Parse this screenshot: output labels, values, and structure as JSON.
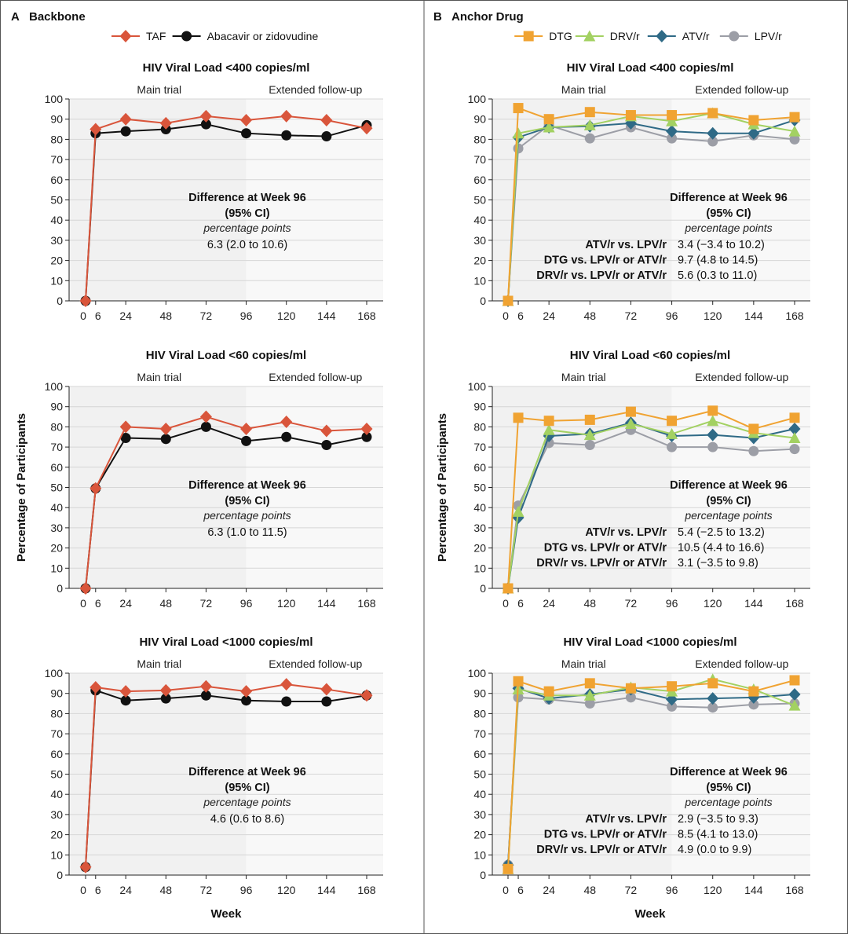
{
  "panels": [
    {
      "letter": "A",
      "title": "Backbone",
      "xlabel": "Week",
      "ylabel": "Percentage of Participants",
      "legend": [
        {
          "name": "TAF",
          "color": "#d9553b",
          "marker": "diamond"
        },
        {
          "name": "Abacavir or zidovudine",
          "color": "#111111",
          "marker": "circle"
        }
      ]
    },
    {
      "letter": "B",
      "title": "Anchor Drug",
      "xlabel": "Week",
      "ylabel": "Percentage of Participants",
      "legend": [
        {
          "name": "DTG",
          "color": "#f0a332",
          "marker": "square"
        },
        {
          "name": "DRV/r",
          "color": "#a3d162",
          "marker": "triangle"
        },
        {
          "name": "ATV/r",
          "color": "#2f6a86",
          "marker": "diamond"
        },
        {
          "name": "LPV/r",
          "color": "#9c9ea6",
          "marker": "circle"
        }
      ]
    }
  ],
  "chart_data": [
    {
      "panel": "A",
      "type": "line",
      "title": "HIV Viral Load <400 copies/ml",
      "x": [
        0,
        6,
        24,
        48,
        72,
        96,
        120,
        144,
        168
      ],
      "x_ticks": [
        0,
        6,
        24,
        48,
        72,
        96,
        120,
        144,
        168
      ],
      "y_ticks": [
        0,
        10,
        20,
        30,
        40,
        50,
        60,
        70,
        80,
        90,
        100
      ],
      "ylim": [
        0,
        100
      ],
      "grid": true,
      "sections": [
        "Main trial",
        "Extended follow-up"
      ],
      "annotation": {
        "heading": "Difference at Week 96",
        "subheading": "(95% CI)",
        "units": "percentage points",
        "rows": [
          {
            "label": "",
            "value": "6.3 (2.0 to 10.6)"
          }
        ]
      },
      "series": [
        {
          "name": "TAF",
          "values": [
            0,
            85,
            90,
            88,
            91.5,
            89.5,
            91.5,
            89.5,
            85.5
          ]
        },
        {
          "name": "Abacavir or zidovudine",
          "values": [
            0,
            83,
            84,
            85,
            87.5,
            83,
            82,
            81.5,
            87
          ]
        }
      ]
    },
    {
      "panel": "A",
      "type": "line",
      "title": "HIV Viral Load <60 copies/ml",
      "x": [
        0,
        6,
        24,
        48,
        72,
        96,
        120,
        144,
        168
      ],
      "x_ticks": [
        0,
        6,
        24,
        48,
        72,
        96,
        120,
        144,
        168
      ],
      "y_ticks": [
        0,
        10,
        20,
        30,
        40,
        50,
        60,
        70,
        80,
        90,
        100
      ],
      "ylim": [
        0,
        100
      ],
      "grid": true,
      "sections": [
        "Main trial",
        "Extended follow-up"
      ],
      "annotation": {
        "heading": "Difference at Week 96",
        "subheading": "(95% CI)",
        "units": "percentage points",
        "rows": [
          {
            "label": "",
            "value": "6.3 (1.0 to 11.5)"
          }
        ]
      },
      "series": [
        {
          "name": "TAF",
          "values": [
            0,
            49.5,
            80,
            79,
            85,
            79,
            82.5,
            78,
            79
          ]
        },
        {
          "name": "Abacavir or zidovudine",
          "values": [
            0,
            49.5,
            74.5,
            74,
            80,
            73,
            75,
            71,
            75
          ]
        }
      ]
    },
    {
      "panel": "A",
      "type": "line",
      "title": "HIV Viral Load <1000 copies/ml",
      "x": [
        0,
        6,
        24,
        48,
        72,
        96,
        120,
        144,
        168
      ],
      "x_ticks": [
        0,
        6,
        24,
        48,
        72,
        96,
        120,
        144,
        168
      ],
      "y_ticks": [
        0,
        10,
        20,
        30,
        40,
        50,
        60,
        70,
        80,
        90,
        100
      ],
      "ylim": [
        0,
        100
      ],
      "grid": true,
      "sections": [
        "Main trial",
        "Extended follow-up"
      ],
      "annotation": {
        "heading": "Difference at Week 96",
        "subheading": "(95% CI)",
        "units": "percentage points",
        "rows": [
          {
            "label": "",
            "value": "4.6 (0.6 to 8.6)"
          }
        ]
      },
      "series": [
        {
          "name": "TAF",
          "values": [
            4,
            93,
            91,
            91.5,
            93.5,
            91,
            94.5,
            92,
            89
          ]
        },
        {
          "name": "Abacavir or zidovudine",
          "values": [
            4,
            91.5,
            86.5,
            87.5,
            89,
            86.5,
            86,
            86,
            89
          ]
        }
      ]
    },
    {
      "panel": "B",
      "type": "line",
      "title": "HIV Viral Load <400 copies/ml",
      "x": [
        0,
        6,
        24,
        48,
        72,
        96,
        120,
        144,
        168
      ],
      "x_ticks": [
        0,
        6,
        24,
        48,
        72,
        96,
        120,
        144,
        168
      ],
      "y_ticks": [
        0,
        10,
        20,
        30,
        40,
        50,
        60,
        70,
        80,
        90,
        100
      ],
      "ylim": [
        0,
        100
      ],
      "grid": true,
      "sections": [
        "Main trial",
        "Extended follow-up"
      ],
      "annotation": {
        "heading": "Difference at Week 96",
        "subheading": "(95% CI)",
        "units": "percentage points",
        "rows": [
          {
            "label": "ATV/r vs. LPV/r",
            "value": "3.4 (−3.4 to 10.2)"
          },
          {
            "label": "DTG vs. LPV/r or ATV/r",
            "value": "9.7 (4.8 to 14.5)"
          },
          {
            "label": "DRV/r vs. LPV/r or ATV/r",
            "value": "5.6 (0.3 to 11.0)"
          }
        ]
      },
      "series": [
        {
          "name": "DTG",
          "values": [
            0,
            95.5,
            90,
            93.5,
            92,
            92,
            93,
            89.5,
            91
          ]
        },
        {
          "name": "DRV/r",
          "values": [
            0,
            83,
            86,
            87,
            91.5,
            89,
            93,
            87.5,
            84
          ]
        },
        {
          "name": "ATV/r",
          "values": [
            0,
            81,
            86,
            86.5,
            88,
            84,
            83,
            83,
            89.5
          ]
        },
        {
          "name": "LPV/r",
          "values": [
            0,
            75.5,
            87,
            80.5,
            86,
            80.5,
            79,
            82,
            80
          ]
        }
      ]
    },
    {
      "panel": "B",
      "type": "line",
      "title": "HIV Viral Load <60 copies/ml",
      "x": [
        0,
        6,
        24,
        48,
        72,
        96,
        120,
        144,
        168
      ],
      "x_ticks": [
        0,
        6,
        24,
        48,
        72,
        96,
        120,
        144,
        168
      ],
      "y_ticks": [
        0,
        10,
        20,
        30,
        40,
        50,
        60,
        70,
        80,
        90,
        100
      ],
      "ylim": [
        0,
        100
      ],
      "grid": true,
      "sections": [
        "Main trial",
        "Extended follow-up"
      ],
      "annotation": {
        "heading": "Difference at Week 96",
        "subheading": "(95% CI)",
        "units": "percentage points",
        "rows": [
          {
            "label": "ATV/r vs. LPV/r",
            "value": "5.4 (−2.5 to 13.2)"
          },
          {
            "label": "DTG vs. LPV/r or ATV/r",
            "value": "10.5 (4.4 to 16.6)"
          },
          {
            "label": "DRV/r vs. LPV/r or ATV/r",
            "value": "3.1 (−3.5 to 9.8)"
          }
        ]
      },
      "series": [
        {
          "name": "DTG",
          "values": [
            0,
            84.5,
            83,
            83.5,
            87.5,
            83,
            88,
            79,
            84.5
          ]
        },
        {
          "name": "DRV/r",
          "values": [
            0,
            38,
            78.5,
            76,
            81.5,
            76.5,
            83,
            77,
            74.5
          ]
        },
        {
          "name": "ATV/r",
          "values": [
            0,
            35,
            75.5,
            76.5,
            82,
            75.5,
            76,
            74.5,
            79
          ]
        },
        {
          "name": "LPV/r",
          "values": [
            0,
            41,
            72,
            71,
            78.5,
            70,
            70,
            68,
            69
          ]
        }
      ]
    },
    {
      "panel": "B",
      "type": "line",
      "title": "HIV Viral Load <1000 copies/ml",
      "x": [
        0,
        6,
        24,
        48,
        72,
        96,
        120,
        144,
        168
      ],
      "x_ticks": [
        0,
        6,
        24,
        48,
        72,
        96,
        120,
        144,
        168
      ],
      "y_ticks": [
        0,
        10,
        20,
        30,
        40,
        50,
        60,
        70,
        80,
        90,
        100
      ],
      "ylim": [
        0,
        100
      ],
      "grid": true,
      "sections": [
        "Main trial",
        "Extended follow-up"
      ],
      "annotation": {
        "heading": "Difference at Week 96",
        "subheading": "(95% CI)",
        "units": "percentage points",
        "rows": [
          {
            "label": "ATV/r vs. LPV/r",
            "value": "2.9 (−3.5 to 9.3)"
          },
          {
            "label": "DTG vs. LPV/r or ATV/r",
            "value": "8.5 (4.1 to 13.0)"
          },
          {
            "label": "DRV/r vs. LPV/r or ATV/r",
            "value": "4.9 (0.0 to 9.9)"
          }
        ]
      },
      "series": [
        {
          "name": "DTG",
          "values": [
            3,
            96,
            91,
            95,
            92.5,
            93.5,
            95,
            91,
            96.5
          ]
        },
        {
          "name": "DRV/r",
          "values": [
            3,
            92,
            89,
            89,
            93,
            91,
            97,
            92,
            84
          ]
        },
        {
          "name": "ATV/r",
          "values": [
            5,
            92.5,
            87.5,
            89.5,
            92,
            87,
            87.5,
            88,
            89.5
          ]
        },
        {
          "name": "LPV/r",
          "values": [
            5,
            88,
            87,
            85,
            88,
            83.5,
            83,
            84.5,
            85
          ]
        }
      ]
    }
  ]
}
